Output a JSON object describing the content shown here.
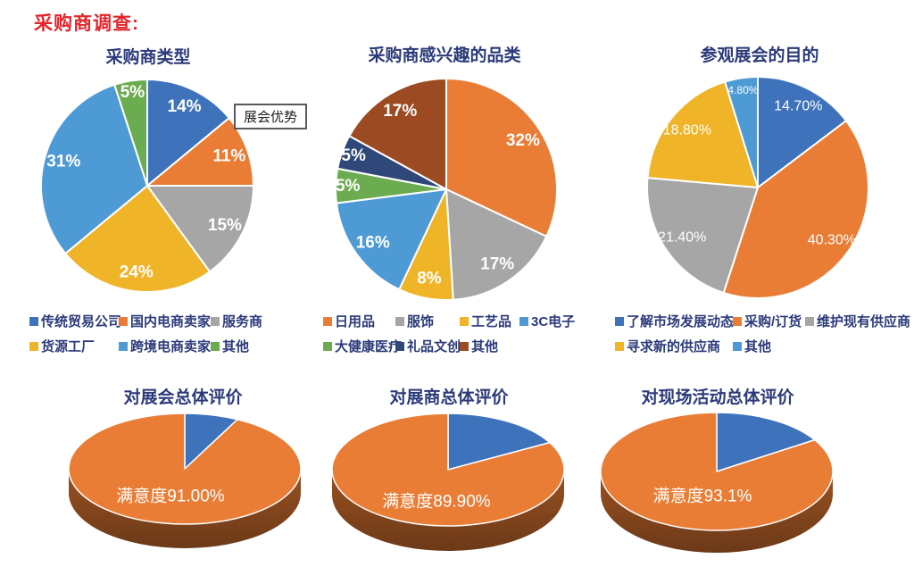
{
  "page_title": "采购商调查:",
  "callout": {
    "label": "展会优势"
  },
  "theme": {
    "heading_color": "#E3242B",
    "chart_title_color": "#2B3A7A",
    "slice_label_color": "#FFFFFF",
    "pie3d_side_top": "#9A5222",
    "pie3d_side_bottom": "#6C3918"
  },
  "chart_data": [
    {
      "type": "pie",
      "title": "采购商类型",
      "legend_position": "bottom",
      "series": [
        {
          "label": "传统贸易公司",
          "value": 14,
          "display": "14%",
          "color": "#3E73BC"
        },
        {
          "label": "国内电商卖家",
          "value": 11,
          "display": "11%",
          "color": "#E97D36"
        },
        {
          "label": "服务商",
          "value": 15,
          "display": "15%",
          "color": "#A6A6A6"
        },
        {
          "label": "货源工厂",
          "value": 24,
          "display": "24%",
          "color": "#F0B429"
        },
        {
          "label": "跨境电商卖家",
          "value": 31,
          "display": "31%",
          "color": "#4E9AD4"
        },
        {
          "label": "其他",
          "value": 5,
          "display": "5%",
          "color": "#6CAC50"
        }
      ]
    },
    {
      "type": "pie",
      "title": "采购商感兴趣的品类",
      "legend_position": "bottom",
      "series": [
        {
          "label": "日用品",
          "value": 32,
          "display": "32%",
          "color": "#E97D36"
        },
        {
          "label": "服饰",
          "value": 17,
          "display": "17%",
          "color": "#A6A6A6"
        },
        {
          "label": "工艺品",
          "value": 8,
          "display": "8%",
          "color": "#F0B429"
        },
        {
          "label": "3C电子",
          "value": 16,
          "display": "16%",
          "color": "#4E9AD4"
        },
        {
          "label": "大健康医疗",
          "value": 5,
          "display": "5%",
          "color": "#6CAC50"
        },
        {
          "label": "礼品文创",
          "value": 5,
          "display": "5%",
          "color": "#2F4879"
        },
        {
          "label": "其他",
          "value": 17,
          "display": "17%",
          "color": "#9C4A21"
        }
      ]
    },
    {
      "type": "pie",
      "title": "参观展会的目的",
      "legend_position": "bottom",
      "series": [
        {
          "label": "了解市场发展动态",
          "value": 14.7,
          "display": "14.70%",
          "color": "#3E73BC"
        },
        {
          "label": "采购/订货",
          "value": 40.3,
          "display": "40.30%",
          "color": "#E97D36"
        },
        {
          "label": "维护现有供应商",
          "value": 21.4,
          "display": "21.40%",
          "color": "#A6A6A6"
        },
        {
          "label": "寻求新的供应商",
          "value": 18.8,
          "display": "18.80%",
          "color": "#F0B429"
        },
        {
          "label": "其他",
          "value": 4.8,
          "display": "4.80%",
          "color": "#4E9AD4"
        }
      ]
    },
    {
      "type": "pie3d",
      "title": "对展会总体评价",
      "center_label": "满意度91.00%",
      "series": [
        {
          "value": 7.5,
          "color": "#3E73BC"
        },
        {
          "value": 92.5,
          "color": "#E97D36"
        }
      ]
    },
    {
      "type": "pie3d",
      "title": "对展商总体评价",
      "center_label": "满意度89.90%",
      "series": [
        {
          "value": 17,
          "color": "#3E73BC"
        },
        {
          "value": 83,
          "color": "#E97D36"
        }
      ]
    },
    {
      "type": "pie3d",
      "title": "对现场活动总体评价",
      "center_label": "满意度93.1%",
      "series": [
        {
          "value": 16,
          "color": "#3E73BC"
        },
        {
          "value": 84,
          "color": "#E97D36"
        }
      ]
    }
  ]
}
